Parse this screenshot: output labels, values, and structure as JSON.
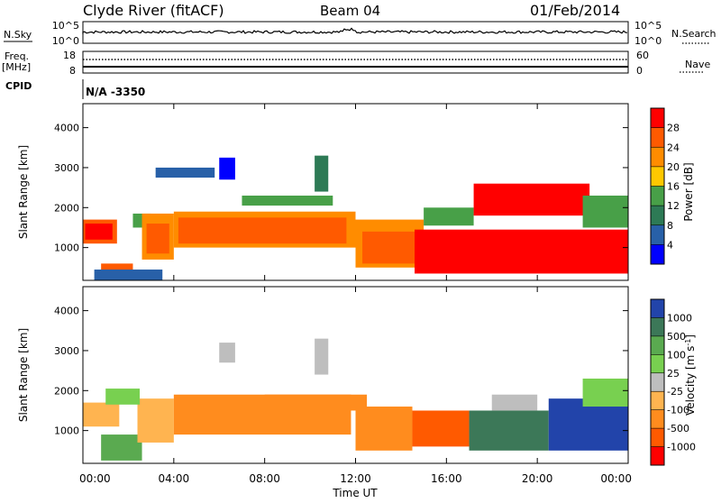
{
  "header": {
    "station": "Clyde River (fitACF)",
    "beam": "Beam 04",
    "date": "01/Feb/2014"
  },
  "top_panels": {
    "nsky_label": "N.Sky",
    "nsky_ticks": [
      "10^5",
      "10^0"
    ],
    "nsearch_label": "N.Search",
    "nsearch_ticks": [
      "10^5",
      "10^0"
    ],
    "freq_label": "Freq.",
    "freq_unit": "[MHz]",
    "freq_ticks": [
      "18",
      "8"
    ],
    "nave_label": "Nave",
    "nave_ticks": [
      "60",
      "0"
    ],
    "cpid_label": "CPID",
    "cpid_value": "N/A -3350"
  },
  "chart_data": [
    {
      "type": "heatmap",
      "name": "power",
      "ylabel": "Slant Range [km]",
      "yticks": [
        "4000",
        "3000",
        "2000",
        "1000"
      ],
      "ytick_values": [
        4000,
        3000,
        2000,
        1000
      ],
      "ylim": [
        180,
        4600
      ],
      "colorbar_label": "Power [dB]",
      "colorbar_ticks": [
        "28",
        "24",
        "20",
        "16",
        "12",
        "8",
        "4"
      ],
      "colorbar_colors": [
        "#ff0000",
        "#ff5a00",
        "#ff8c00",
        "#ffc800",
        "#48a048",
        "#2d7a55",
        "#2860a8",
        "#0000ff"
      ],
      "regions": [
        {
          "t0": 0.0,
          "t1": 1.5,
          "r0": 1100,
          "r1": 1700,
          "level": 1
        },
        {
          "t0": 0.1,
          "t1": 1.3,
          "r0": 1200,
          "r1": 1600,
          "level": 0
        },
        {
          "t0": 0.8,
          "t1": 2.2,
          "r0": 250,
          "r1": 600,
          "level": 1
        },
        {
          "t0": 2.2,
          "t1": 3.0,
          "r0": 1500,
          "r1": 1850,
          "level": 4
        },
        {
          "t0": 2.6,
          "t1": 4.0,
          "r0": 700,
          "r1": 1850,
          "level": 2
        },
        {
          "t0": 2.8,
          "t1": 3.8,
          "r0": 850,
          "r1": 1600,
          "level": 1
        },
        {
          "t0": 4.0,
          "t1": 12.0,
          "r0": 1000,
          "r1": 1900,
          "level": 2
        },
        {
          "t0": 4.2,
          "t1": 11.6,
          "r0": 1100,
          "r1": 1750,
          "level": 1
        },
        {
          "t0": 7.0,
          "t1": 11.0,
          "r0": 2050,
          "r1": 2300,
          "level": 4
        },
        {
          "t0": 12.0,
          "t1": 15.0,
          "r0": 500,
          "r1": 1700,
          "level": 2
        },
        {
          "t0": 12.3,
          "t1": 15.0,
          "r0": 600,
          "r1": 1400,
          "level": 1
        },
        {
          "t0": 14.6,
          "t1": 24.0,
          "r0": 350,
          "r1": 1450,
          "level": 0
        },
        {
          "t0": 15.0,
          "t1": 17.2,
          "r0": 1550,
          "r1": 2000,
          "level": 4
        },
        {
          "t0": 17.2,
          "t1": 22.3,
          "r0": 1800,
          "r1": 2600,
          "level": 0
        },
        {
          "t0": 22.0,
          "t1": 24.0,
          "r0": 1500,
          "r1": 2300,
          "level": 4
        },
        {
          "t0": 3.2,
          "t1": 5.8,
          "r0": 2750,
          "r1": 3000,
          "level": 6
        },
        {
          "t0": 6.0,
          "t1": 6.7,
          "r0": 2700,
          "r1": 3250,
          "level": 7
        },
        {
          "t0": 10.2,
          "t1": 10.8,
          "r0": 2400,
          "r1": 3300,
          "level": 5
        },
        {
          "t0": 0.5,
          "t1": 3.5,
          "r0": 180,
          "r1": 450,
          "level": 6
        }
      ]
    },
    {
      "type": "heatmap",
      "name": "velocity",
      "ylabel": "Slant Range [km]",
      "yticks": [
        "4000",
        "3000",
        "2000",
        "1000"
      ],
      "ytick_values": [
        4000,
        3000,
        2000,
        1000
      ],
      "ylim": [
        180,
        4600
      ],
      "xticks": [
        "00:00",
        "04:00",
        "08:00",
        "12:00",
        "16:00",
        "20:00",
        "00:00"
      ],
      "xtick_values": [
        0,
        4,
        8,
        12,
        16,
        20,
        24
      ],
      "xlabel": "Time UT",
      "colorbar_label": "Velocity [m s",
      "colorbar_unit_sup": "-1",
      "colorbar_unit_close": "]",
      "colorbar_ticks": [
        "1000",
        "500",
        "100",
        "25",
        "-25",
        "-100",
        "-500",
        "-1000"
      ],
      "colorbar_colors": [
        "#2244aa",
        "#3c7858",
        "#5aaa50",
        "#78d050",
        "#bebebe",
        "#ffb450",
        "#ff8c1e",
        "#ff5a00",
        "#ff0000"
      ],
      "regions": [
        {
          "t0": 0.0,
          "t1": 1.6,
          "r0": 1100,
          "r1": 1700,
          "level": 5
        },
        {
          "t0": 0.8,
          "t1": 2.6,
          "r0": 250,
          "r1": 900,
          "level": 2
        },
        {
          "t0": 2.4,
          "t1": 4.0,
          "r0": 700,
          "r1": 1800,
          "level": 5
        },
        {
          "t0": 4.0,
          "t1": 11.8,
          "r0": 900,
          "r1": 1900,
          "level": 6
        },
        {
          "t0": 8.0,
          "t1": 12.5,
          "r0": 1500,
          "r1": 1900,
          "level": 6
        },
        {
          "t0": 12.0,
          "t1": 14.5,
          "r0": 500,
          "r1": 1600,
          "level": 6
        },
        {
          "t0": 14.5,
          "t1": 17.0,
          "r0": 600,
          "r1": 1500,
          "level": 7
        },
        {
          "t0": 17.0,
          "t1": 20.5,
          "r0": 500,
          "r1": 1500,
          "level": 1
        },
        {
          "t0": 18.0,
          "t1": 20.0,
          "r0": 1500,
          "r1": 1900,
          "level": 4
        },
        {
          "t0": 20.5,
          "t1": 24.0,
          "r0": 500,
          "r1": 1800,
          "level": 0
        },
        {
          "t0": 22.0,
          "t1": 24.0,
          "r0": 1600,
          "r1": 2300,
          "level": 3
        },
        {
          "t0": 6.0,
          "t1": 6.7,
          "r0": 2700,
          "r1": 3200,
          "level": 4
        },
        {
          "t0": 10.2,
          "t1": 10.8,
          "r0": 2400,
          "r1": 3300,
          "level": 4
        },
        {
          "t0": 1.0,
          "t1": 2.5,
          "r0": 1650,
          "r1": 2050,
          "level": 3
        }
      ]
    }
  ]
}
